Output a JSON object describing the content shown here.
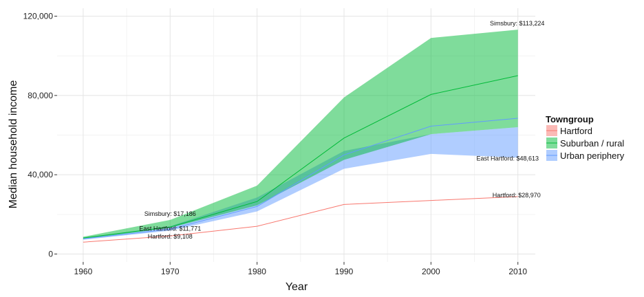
{
  "chart_data": {
    "type": "area",
    "xlabel": "Year",
    "ylabel": "Median household income",
    "xlim": [
      1957,
      2012
    ],
    "ylim": [
      -4000,
      124000
    ],
    "x_ticks": [
      1960,
      1970,
      1980,
      1990,
      2000,
      2010
    ],
    "x_tick_labels": [
      "1960",
      "1970",
      "1980",
      "1990",
      "2000",
      "2010"
    ],
    "y_ticks": [
      0,
      40000,
      80000,
      120000
    ],
    "y_tick_labels": [
      "0",
      "40,000",
      "80,000",
      "120,000"
    ],
    "grid": true,
    "legend": {
      "title": "Towngroup",
      "position": "right",
      "entries": [
        "Hartford",
        "Suburban / rural",
        "Urban periphery"
      ]
    },
    "x": [
      1960,
      1970,
      1980,
      1990,
      2000,
      2010
    ],
    "series": [
      {
        "name": "Urban periphery",
        "color": "#619cff",
        "lower": [
          7200,
          11771,
          21500,
          43000,
          50500,
          48613
        ],
        "upper": [
          8200,
          14000,
          28500,
          52000,
          60500,
          64000
        ],
        "median": [
          7700,
          12500,
          24000,
          50000,
          64500,
          68500
        ]
      },
      {
        "name": "Suburban / rural",
        "color": "#00ba38",
        "lower": [
          7600,
          13200,
          24500,
          47500,
          60500,
          64000
        ],
        "upper": [
          8700,
          17186,
          34500,
          79000,
          109000,
          113224
        ],
        "median": [
          8100,
          13600,
          26500,
          58500,
          80500,
          90000
        ]
      },
      {
        "name": "Hartford",
        "color": "#f8766d",
        "lower": [],
        "upper": [],
        "median": [
          6000,
          9108,
          14000,
          25000,
          27000,
          28970
        ]
      }
    ],
    "annotations": [
      {
        "text": "Simsbury: $113,224",
        "x": 2010,
        "y": 113224
      },
      {
        "text": "Simsbury: $17,186",
        "x": 1970,
        "y": 17186
      },
      {
        "text": "East Hartford: $11,771",
        "x": 1970,
        "y": 11771
      },
      {
        "text": "Hartford: $9,108",
        "x": 1970,
        "y": 9108
      },
      {
        "text": "East Hartford: $48,613",
        "x": 2010,
        "y": 48613
      },
      {
        "text": "Hartford: $28,970",
        "x": 2010,
        "y": 28970
      }
    ]
  }
}
